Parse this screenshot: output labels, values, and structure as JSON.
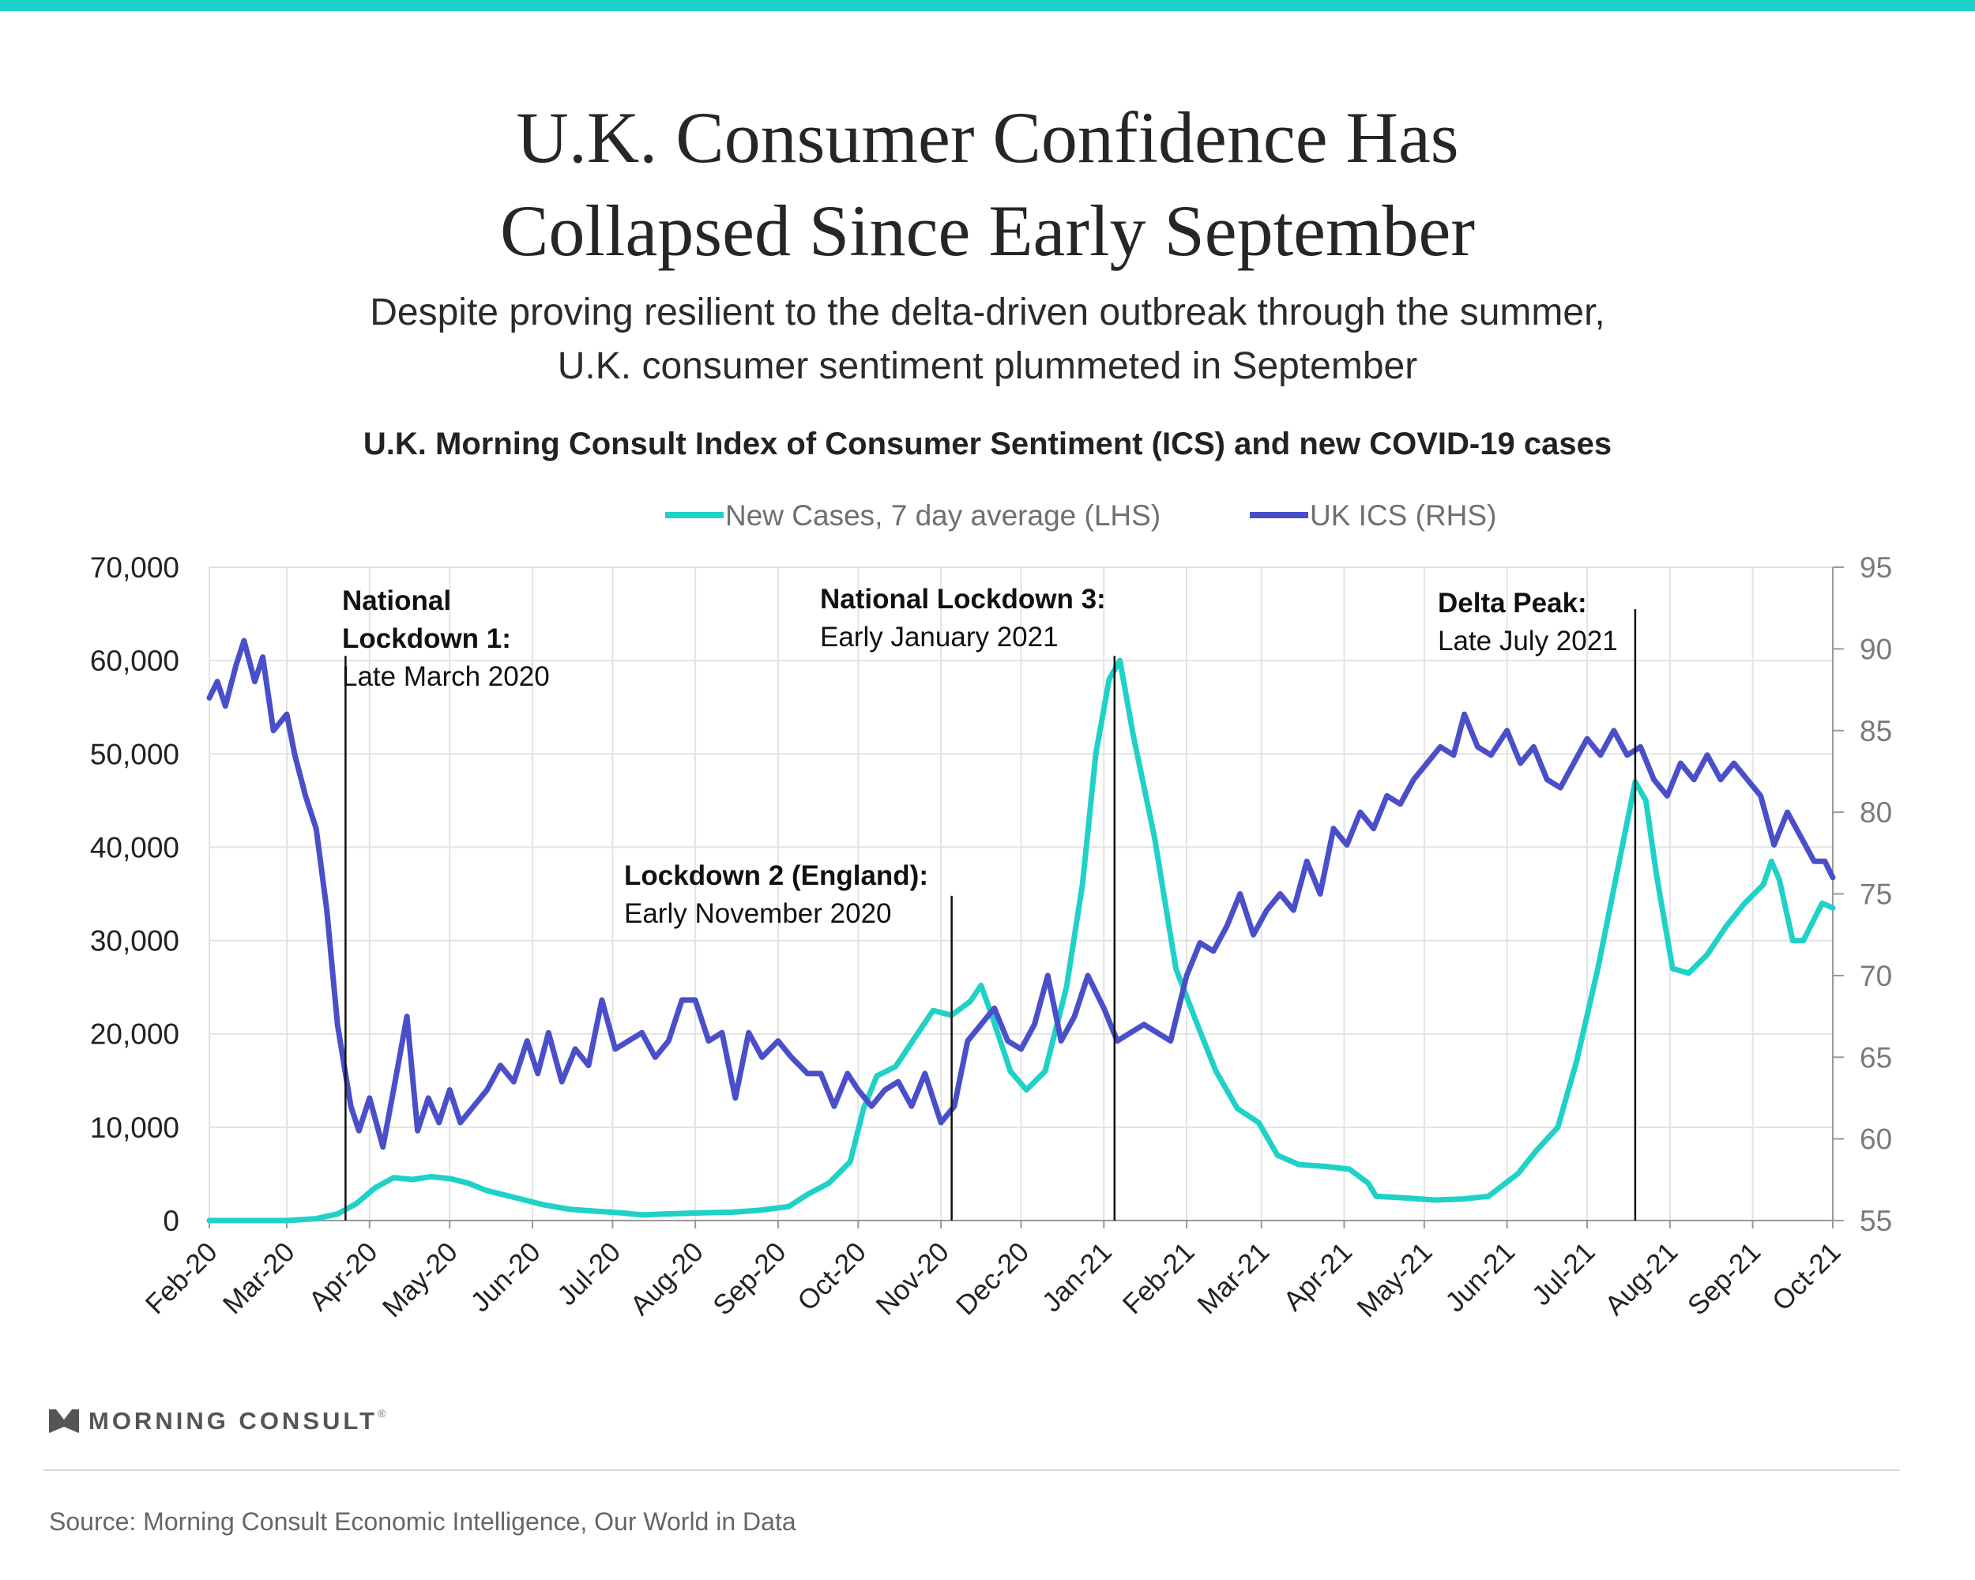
{
  "header": {
    "title_line1": "U.K. Consumer Confidence Has",
    "title_line2": "Collapsed Since Early September",
    "subtitle_line1": "Despite proving resilient to the delta-driven outbreak through the summer,",
    "subtitle_line2": "U.K. consumer sentiment plummeted in September",
    "chart_title": "U.K. Morning Consult Index of Consumer Sentiment (ICS) and new COVID-19 cases"
  },
  "footer": {
    "logo_text": "MORNING CONSULT",
    "logo_mark": "®",
    "source": "Source: Morning Consult Economic Intelligence, Our World in Data"
  },
  "colors": {
    "accent_bar": "#1fd1c7",
    "cases": "#1fd1c7",
    "ics": "#4a4fc9",
    "grid": "#e3e3e3",
    "axis_text": "#222222",
    "right_axis_text": "#7a7a7a"
  },
  "chart_data": {
    "type": "line",
    "title": "U.K. Morning Consult Index of Consumer Sentiment (ICS) and new COVID-19 cases",
    "x_tick_labels": [
      "Feb-20",
      "Mar-20",
      "Apr-20",
      "May-20",
      "Jun-20",
      "Jul-20",
      "Aug-20",
      "Sep-20",
      "Oct-20",
      "Nov-20",
      "Dec-20",
      "Jan-21",
      "Feb-21",
      "Mar-21",
      "Apr-21",
      "May-21",
      "Jun-21",
      "Jul-21",
      "Aug-21",
      "Sep-21",
      "Oct-21"
    ],
    "x_range": [
      "2020-02-01",
      "2021-10-01"
    ],
    "left_axis": {
      "ylim": [
        0,
        70000
      ],
      "ticks": [
        0,
        10000,
        20000,
        30000,
        40000,
        50000,
        60000,
        70000
      ],
      "tick_labels": [
        "0",
        "10,000",
        "20,000",
        "30,000",
        "40,000",
        "50,000",
        "60,000",
        "70,000"
      ]
    },
    "right_axis": {
      "ylim": [
        55,
        95
      ],
      "ticks": [
        55,
        60,
        65,
        70,
        75,
        80,
        85,
        90,
        95
      ],
      "tick_labels": [
        "55",
        "60",
        "65",
        "70",
        "75",
        "80",
        "85",
        "90",
        "95"
      ]
    },
    "grid": true,
    "legend": {
      "placement": "top-center",
      "entries": [
        "New Cases, 7 day average (LHS)",
        "UK ICS (RHS)"
      ]
    },
    "series": [
      {
        "name": "New Cases, 7 day average (LHS)",
        "axis": "left",
        "points": [
          [
            "2020-02-01",
            0
          ],
          [
            "2020-03-01",
            0
          ],
          [
            "2020-03-12",
            200
          ],
          [
            "2020-03-20",
            700
          ],
          [
            "2020-03-27",
            1800
          ],
          [
            "2020-04-03",
            3500
          ],
          [
            "2020-04-10",
            4600
          ],
          [
            "2020-04-17",
            4400
          ],
          [
            "2020-04-24",
            4700
          ],
          [
            "2020-05-01",
            4500
          ],
          [
            "2020-05-08",
            4000
          ],
          [
            "2020-05-15",
            3200
          ],
          [
            "2020-05-25",
            2500
          ],
          [
            "2020-06-05",
            1700
          ],
          [
            "2020-06-15",
            1200
          ],
          [
            "2020-06-25",
            1000
          ],
          [
            "2020-07-05",
            800
          ],
          [
            "2020-07-12",
            600
          ],
          [
            "2020-07-20",
            700
          ],
          [
            "2020-08-01",
            800
          ],
          [
            "2020-08-15",
            900
          ],
          [
            "2020-08-25",
            1100
          ],
          [
            "2020-09-05",
            1500
          ],
          [
            "2020-09-12",
            2800
          ],
          [
            "2020-09-20",
            4000
          ],
          [
            "2020-09-28",
            6300
          ],
          [
            "2020-10-03",
            12000
          ],
          [
            "2020-10-08",
            15500
          ],
          [
            "2020-10-15",
            16500
          ],
          [
            "2020-10-22",
            19500
          ],
          [
            "2020-10-29",
            22500
          ],
          [
            "2020-11-05",
            22000
          ],
          [
            "2020-11-12",
            23500
          ],
          [
            "2020-11-16",
            25200
          ],
          [
            "2020-11-20",
            22000
          ],
          [
            "2020-11-27",
            16000
          ],
          [
            "2020-12-03",
            14000
          ],
          [
            "2020-12-10",
            16000
          ],
          [
            "2020-12-18",
            25000
          ],
          [
            "2020-12-24",
            36000
          ],
          [
            "2020-12-29",
            50000
          ],
          [
            "2021-01-03",
            58000
          ],
          [
            "2021-01-07",
            60000
          ],
          [
            "2021-01-12",
            52000
          ],
          [
            "2021-01-20",
            41000
          ],
          [
            "2021-01-28",
            27000
          ],
          [
            "2021-02-05",
            21000
          ],
          [
            "2021-02-12",
            16000
          ],
          [
            "2021-02-20",
            12000
          ],
          [
            "2021-02-28",
            10500
          ],
          [
            "2021-03-07",
            7000
          ],
          [
            "2021-03-15",
            6000
          ],
          [
            "2021-03-25",
            5800
          ],
          [
            "2021-04-03",
            5500
          ],
          [
            "2021-04-10",
            4000
          ],
          [
            "2021-04-13",
            2600
          ],
          [
            "2021-04-25",
            2400
          ],
          [
            "2021-05-05",
            2200
          ],
          [
            "2021-05-15",
            2300
          ],
          [
            "2021-05-25",
            2600
          ],
          [
            "2021-06-05",
            5000
          ],
          [
            "2021-06-12",
            7500
          ],
          [
            "2021-06-20",
            10000
          ],
          [
            "2021-06-27",
            17000
          ],
          [
            "2021-07-05",
            27000
          ],
          [
            "2021-07-12",
            37000
          ],
          [
            "2021-07-19",
            47000
          ],
          [
            "2021-07-23",
            45000
          ],
          [
            "2021-07-27",
            37000
          ],
          [
            "2021-08-02",
            27000
          ],
          [
            "2021-08-08",
            26500
          ],
          [
            "2021-08-15",
            28500
          ],
          [
            "2021-08-22",
            31500
          ],
          [
            "2021-08-29",
            34000
          ],
          [
            "2021-09-05",
            36000
          ],
          [
            "2021-09-08",
            38500
          ],
          [
            "2021-09-11",
            36500
          ],
          [
            "2021-09-16",
            30000
          ],
          [
            "2021-09-20",
            30000
          ],
          [
            "2021-09-27",
            34000
          ],
          [
            "2021-10-01",
            33500
          ]
        ]
      },
      {
        "name": "UK ICS (RHS)",
        "axis": "right",
        "points": [
          [
            "2020-02-01",
            87
          ],
          [
            "2020-02-04",
            88
          ],
          [
            "2020-02-07",
            86.5
          ],
          [
            "2020-02-11",
            89
          ],
          [
            "2020-02-14",
            90.5
          ],
          [
            "2020-02-18",
            88
          ],
          [
            "2020-02-21",
            89.5
          ],
          [
            "2020-02-25",
            85
          ],
          [
            "2020-03-01",
            86
          ],
          [
            "2020-03-04",
            83.5
          ],
          [
            "2020-03-08",
            81
          ],
          [
            "2020-03-12",
            79
          ],
          [
            "2020-03-16",
            74
          ],
          [
            "2020-03-20",
            67
          ],
          [
            "2020-03-25",
            62
          ],
          [
            "2020-03-28",
            60.5
          ],
          [
            "2020-04-01",
            62.5
          ],
          [
            "2020-04-06",
            59.5
          ],
          [
            "2020-04-10",
            63
          ],
          [
            "2020-04-15",
            67.5
          ],
          [
            "2020-04-19",
            60.5
          ],
          [
            "2020-04-23",
            62.5
          ],
          [
            "2020-04-27",
            61
          ],
          [
            "2020-05-01",
            63
          ],
          [
            "2020-05-05",
            61
          ],
          [
            "2020-05-10",
            62
          ],
          [
            "2020-05-15",
            63
          ],
          [
            "2020-05-20",
            64.5
          ],
          [
            "2020-05-25",
            63.5
          ],
          [
            "2020-05-30",
            66
          ],
          [
            "2020-06-03",
            64
          ],
          [
            "2020-06-07",
            66.5
          ],
          [
            "2020-06-12",
            63.5
          ],
          [
            "2020-06-17",
            65.5
          ],
          [
            "2020-06-22",
            64.5
          ],
          [
            "2020-06-27",
            68.5
          ],
          [
            "2020-07-02",
            65.5
          ],
          [
            "2020-07-07",
            66
          ],
          [
            "2020-07-12",
            66.5
          ],
          [
            "2020-07-17",
            65
          ],
          [
            "2020-07-22",
            66
          ],
          [
            "2020-07-27",
            68.5
          ],
          [
            "2020-08-01",
            68.5
          ],
          [
            "2020-08-06",
            66
          ],
          [
            "2020-08-11",
            66.5
          ],
          [
            "2020-08-16",
            62.5
          ],
          [
            "2020-08-21",
            66.5
          ],
          [
            "2020-08-26",
            65
          ],
          [
            "2020-09-01",
            66
          ],
          [
            "2020-09-06",
            65
          ],
          [
            "2020-09-12",
            64
          ],
          [
            "2020-09-17",
            64
          ],
          [
            "2020-09-22",
            62
          ],
          [
            "2020-09-27",
            64
          ],
          [
            "2020-10-01",
            63
          ],
          [
            "2020-10-06",
            62
          ],
          [
            "2020-10-11",
            63
          ],
          [
            "2020-10-16",
            63.5
          ],
          [
            "2020-10-21",
            62
          ],
          [
            "2020-10-26",
            64
          ],
          [
            "2020-11-01",
            61
          ],
          [
            "2020-11-06",
            62
          ],
          [
            "2020-11-11",
            66
          ],
          [
            "2020-11-16",
            67
          ],
          [
            "2020-11-21",
            68
          ],
          [
            "2020-11-26",
            66
          ],
          [
            "2020-12-01",
            65.5
          ],
          [
            "2020-12-06",
            67
          ],
          [
            "2020-12-11",
            70
          ],
          [
            "2020-12-16",
            66
          ],
          [
            "2020-12-21",
            67.5
          ],
          [
            "2020-12-26",
            70
          ],
          [
            "2021-01-01",
            68
          ],
          [
            "2021-01-06",
            66
          ],
          [
            "2021-01-11",
            66.5
          ],
          [
            "2021-01-16",
            67
          ],
          [
            "2021-01-21",
            66.5
          ],
          [
            "2021-01-26",
            66
          ],
          [
            "2021-02-01",
            70
          ],
          [
            "2021-02-06",
            72
          ],
          [
            "2021-02-11",
            71.5
          ],
          [
            "2021-02-16",
            73
          ],
          [
            "2021-02-21",
            75
          ],
          [
            "2021-02-26",
            72.5
          ],
          [
            "2021-03-03",
            74
          ],
          [
            "2021-03-08",
            75
          ],
          [
            "2021-03-13",
            74
          ],
          [
            "2021-03-18",
            77
          ],
          [
            "2021-03-23",
            75
          ],
          [
            "2021-03-28",
            79
          ],
          [
            "2021-04-02",
            78
          ],
          [
            "2021-04-07",
            80
          ],
          [
            "2021-04-12",
            79
          ],
          [
            "2021-04-17",
            81
          ],
          [
            "2021-04-22",
            80.5
          ],
          [
            "2021-04-27",
            82
          ],
          [
            "2021-05-02",
            83
          ],
          [
            "2021-05-07",
            84
          ],
          [
            "2021-05-12",
            83.5
          ],
          [
            "2021-05-16",
            86
          ],
          [
            "2021-05-21",
            84
          ],
          [
            "2021-05-26",
            83.5
          ],
          [
            "2021-06-01",
            85
          ],
          [
            "2021-06-06",
            83
          ],
          [
            "2021-06-11",
            84
          ],
          [
            "2021-06-16",
            82
          ],
          [
            "2021-06-21",
            81.5
          ],
          [
            "2021-06-26",
            83
          ],
          [
            "2021-07-01",
            84.5
          ],
          [
            "2021-07-06",
            83.5
          ],
          [
            "2021-07-11",
            85
          ],
          [
            "2021-07-16",
            83.5
          ],
          [
            "2021-07-21",
            84
          ],
          [
            "2021-07-26",
            82
          ],
          [
            "2021-07-31",
            81
          ],
          [
            "2021-08-05",
            83
          ],
          [
            "2021-08-10",
            82
          ],
          [
            "2021-08-15",
            83.5
          ],
          [
            "2021-08-20",
            82
          ],
          [
            "2021-08-25",
            83
          ],
          [
            "2021-08-30",
            82
          ],
          [
            "2021-09-04",
            81
          ],
          [
            "2021-09-09",
            78
          ],
          [
            "2021-09-14",
            80
          ],
          [
            "2021-09-19",
            78.5
          ],
          [
            "2021-09-24",
            77
          ],
          [
            "2021-09-28",
            77
          ],
          [
            "2021-10-01",
            76
          ]
        ]
      }
    ],
    "annotations": [
      {
        "date": "2020-03-23",
        "line_top_value": 60500,
        "title": "National",
        "title2": "Lockdown 1:",
        "detail": "Late March 2020"
      },
      {
        "date": "2020-11-05",
        "line_top_value": 34800,
        "title": "Lockdown 2 (England):",
        "title2": "",
        "detail": "Early November 2020"
      },
      {
        "date": "2021-01-05",
        "line_top_value": 60500,
        "title": "National Lockdown 3:",
        "title2": "",
        "detail": "Early January 2021"
      },
      {
        "date": "2021-07-19",
        "line_top_value": 65500,
        "title": "Delta Peak:",
        "title2": "",
        "detail": "Late July 2021"
      }
    ]
  }
}
